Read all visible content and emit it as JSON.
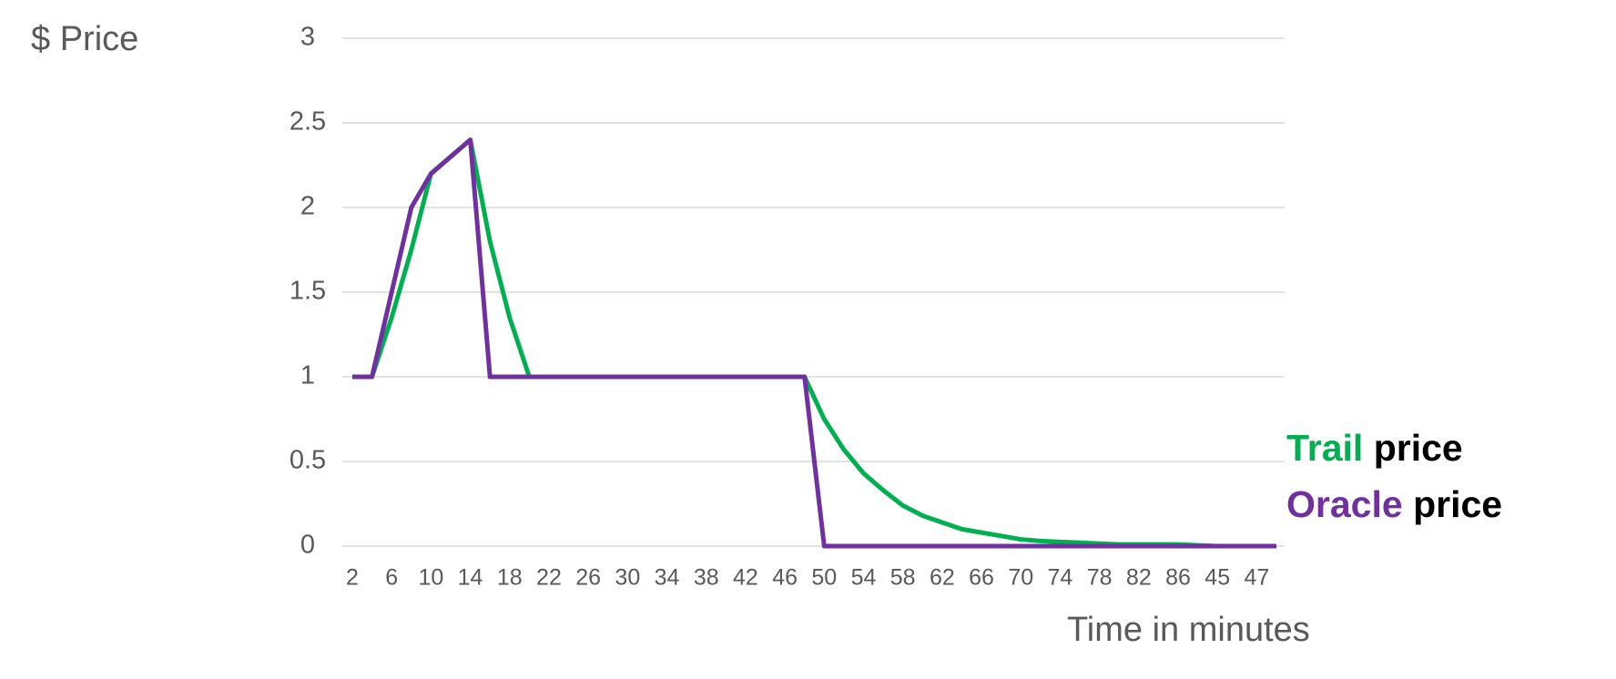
{
  "chart_data": {
    "type": "line",
    "y_label": "$ Price",
    "x_label": "Time in minutes",
    "legend_suffix": "price",
    "categories": [
      "2",
      null,
      "6",
      null,
      "10",
      null,
      "14",
      null,
      "18",
      null,
      "22",
      null,
      "26",
      null,
      "30",
      null,
      "34",
      null,
      "38",
      null,
      "42",
      null,
      "46",
      null,
      "50",
      null,
      "54",
      null,
      "58",
      null,
      "62",
      null,
      "66",
      null,
      "70",
      null,
      "74",
      null,
      "78",
      null,
      "82",
      null,
      "86",
      null,
      "45",
      null,
      "47",
      null
    ],
    "series": [
      {
        "name": "Trail",
        "color": "#00b050",
        "values": [
          1,
          1,
          1.35,
          1.75,
          2.2,
          2.3,
          2.4,
          1.8,
          1.35,
          1.0,
          1,
          1,
          1,
          1,
          1,
          1,
          1,
          1,
          1,
          1,
          1,
          1,
          1,
          1,
          0.75,
          0.57,
          0.43,
          0.33,
          0.24,
          0.18,
          0.14,
          0.1,
          0.08,
          0.06,
          0.04,
          0.03,
          0.025,
          0.02,
          0.015,
          0.01,
          0.01,
          0.01,
          0.01,
          0.005,
          0,
          0,
          0,
          0
        ]
      },
      {
        "name": "Oracle",
        "color": "#7030a0",
        "values": [
          1,
          1,
          1.5,
          2,
          2.2,
          2.3,
          2.4,
          1,
          1,
          1,
          1,
          1,
          1,
          1,
          1,
          1,
          1,
          1,
          1,
          1,
          1,
          1,
          1,
          1,
          0,
          0,
          0,
          0,
          0,
          0,
          0,
          0,
          0,
          0,
          0,
          0,
          0,
          0,
          0,
          0,
          0,
          0,
          0,
          0,
          0,
          0,
          0,
          0
        ]
      }
    ],
    "ylim": [
      0,
      3
    ],
    "yticks": [
      0,
      0.5,
      1,
      1.5,
      2,
      2.5,
      3
    ],
    "grid": true
  }
}
